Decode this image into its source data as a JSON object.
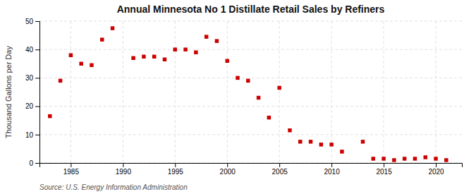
{
  "chart_data": {
    "type": "scatter",
    "title": "Annual Minnesota No 1 Distillate Retail Sales by Refiners",
    "ylabel": "Thousand Gallons per Day",
    "annotation": "Source: U.S. Energy Information Administration",
    "color": "#CC0000",
    "marker": "square",
    "grid": true,
    "xlim": [
      1982,
      2022.5
    ],
    "ylim": [
      0,
      50
    ],
    "xticks": [
      1985,
      1990,
      1995,
      2000,
      2005,
      2010,
      2015,
      2020
    ],
    "yticks": [
      0,
      10,
      20,
      30,
      40,
      50
    ],
    "x": [
      1983,
      1984,
      1985,
      1986,
      1987,
      1988,
      1989,
      1991,
      1992,
      1993,
      1994,
      1995,
      1996,
      1997,
      1998,
      1999,
      2000,
      2001,
      2002,
      2003,
      2004,
      2005,
      2006,
      2007,
      2008,
      2009,
      2010,
      2011,
      2013,
      2014,
      2015,
      2016,
      2017,
      2018,
      2019,
      2020,
      2021
    ],
    "values": [
      16.5,
      29.0,
      38.0,
      35.0,
      34.5,
      43.5,
      47.5,
      37.0,
      37.5,
      37.5,
      36.5,
      40.0,
      40.0,
      39.0,
      44.5,
      43.0,
      36.0,
      30.0,
      29.0,
      23.0,
      16.0,
      26.5,
      11.5,
      7.5,
      7.5,
      6.5,
      6.5,
      4.0,
      7.5,
      1.5,
      1.5,
      1.0,
      1.5,
      1.5,
      2.0,
      1.5,
      1.0
    ]
  }
}
